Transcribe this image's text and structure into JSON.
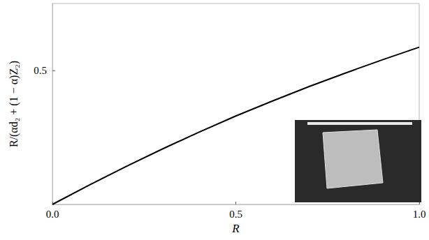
{
  "chart_data": {
    "type": "line",
    "x_label": "R",
    "y_label": "R/(αd₂ + (1 − α)Z₂)",
    "x": [
      0,
      0.1,
      0.2,
      0.3,
      0.4,
      0.5,
      0.6,
      0.7,
      0.8,
      0.9,
      1.0
    ],
    "values": [
      0,
      0.072,
      0.141,
      0.207,
      0.27,
      0.33,
      0.386,
      0.44,
      0.491,
      0.54,
      0.587
    ],
    "color": "#000000",
    "xlim": [
      0,
      1
    ],
    "ylim": [
      0,
      0.75
    ],
    "xticks": [
      {
        "value": 0,
        "label": "0.0"
      },
      {
        "value": 0.5,
        "label": "0.5"
      },
      {
        "value": 1,
        "label": "1.0"
      }
    ],
    "yticks": [
      0.5
    ],
    "grid": false
  }
}
